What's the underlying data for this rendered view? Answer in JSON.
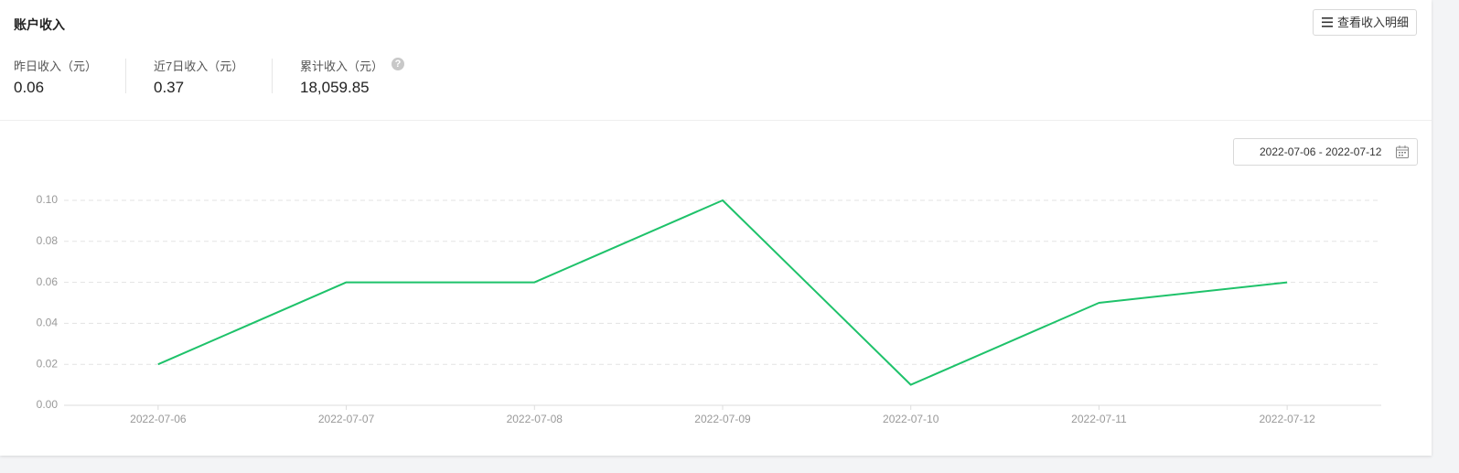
{
  "header": {
    "title": "账户收入",
    "button": "查看收入明细"
  },
  "stats": [
    {
      "label": "昨日收入（元）",
      "value": "0.06"
    },
    {
      "label": "近7日收入（元）",
      "value": "0.37"
    },
    {
      "label": "累计收入（元）",
      "value": "18,059.85"
    }
  ],
  "date_range": "2022-07-06 - 2022-07-12",
  "chart_data": {
    "type": "line",
    "categories": [
      "2022-07-06",
      "2022-07-07",
      "2022-07-08",
      "2022-07-09",
      "2022-07-10",
      "2022-07-11",
      "2022-07-12"
    ],
    "values": [
      0.02,
      0.06,
      0.06,
      0.1,
      0.01,
      0.05,
      0.06
    ],
    "color": "#1ec26a",
    "ylim": [
      0,
      0.1
    ],
    "yticks": [
      {
        "value": 0,
        "label": "0.00"
      },
      0.02,
      0.04,
      0.06,
      0.08,
      {
        "value": 0.1,
        "label": "0.10"
      }
    ],
    "grid": true
  }
}
